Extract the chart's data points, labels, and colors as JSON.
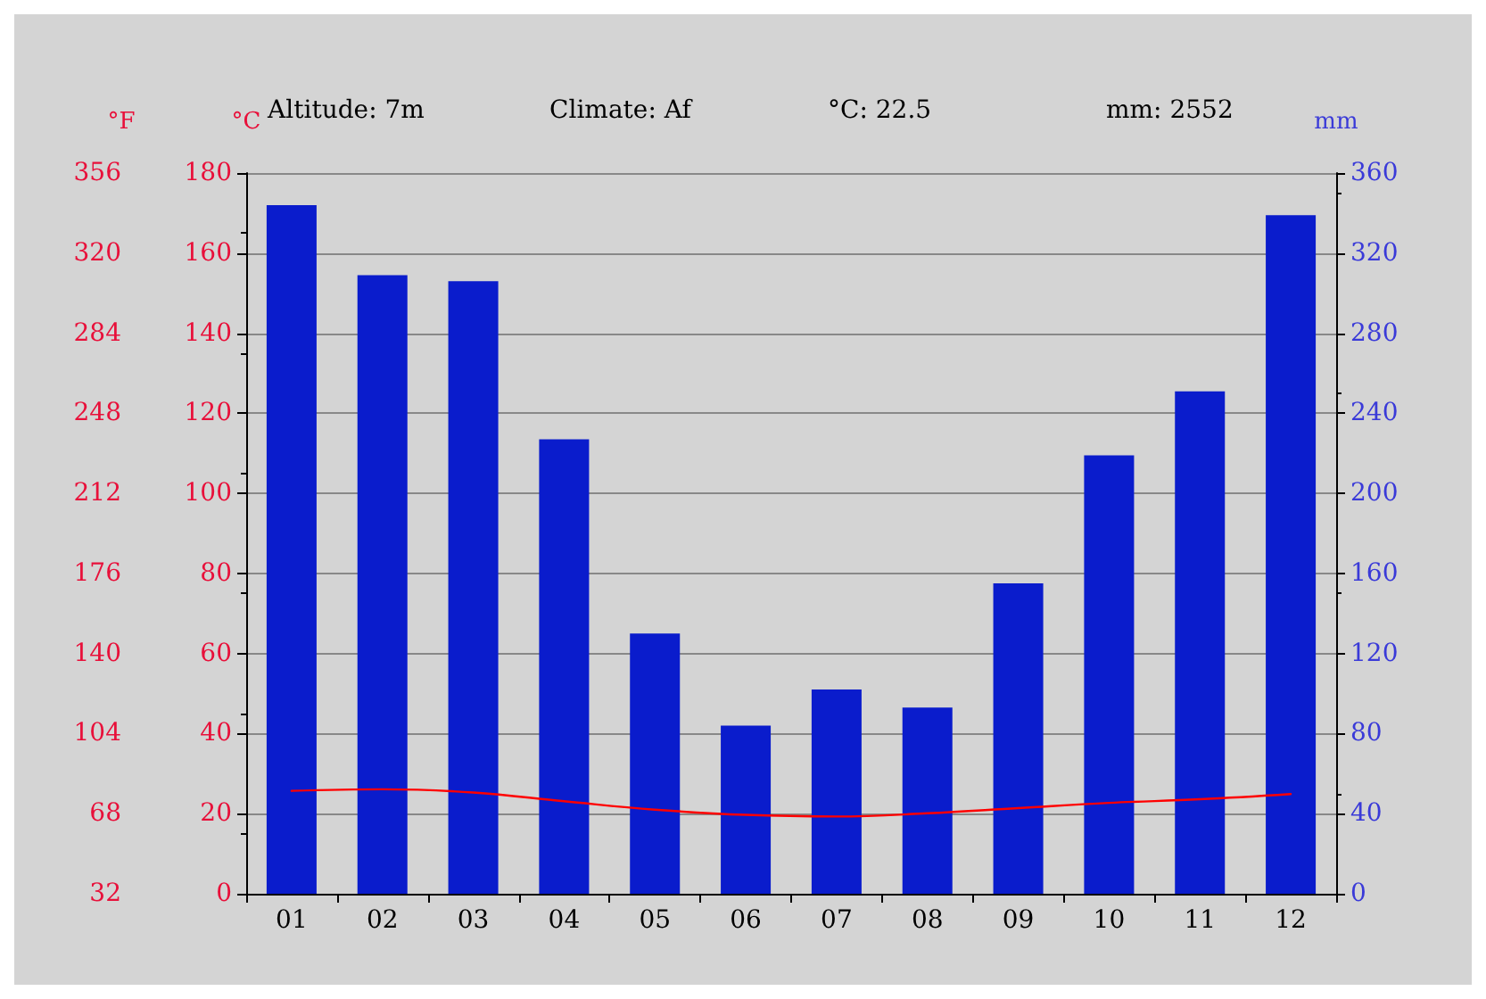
{
  "chart_data": {
    "type": "bar",
    "categories": [
      "01",
      "02",
      "03",
      "04",
      "05",
      "06",
      "07",
      "08",
      "09",
      "10",
      "11",
      "12"
    ],
    "series": [
      {
        "axis": "y2",
        "color": "#0a1ccc",
        "values": [
          344,
          309,
          306,
          227,
          130,
          84,
          102,
          93,
          155,
          219,
          251,
          339
        ]
      },
      {
        "type": "line",
        "axis": "y",
        "color": "#ff0000",
        "values": [
          25.7,
          26.1,
          25.3,
          23.1,
          21,
          19.7,
          19.3,
          20.1,
          21.4,
          22.7,
          23.6,
          24.9
        ]
      }
    ],
    "ylabel": "°C",
    "y2label": "mm",
    "y3label": "°F",
    "ylim": [
      0,
      180
    ],
    "yticks": [
      0,
      20,
      40,
      60,
      80,
      100,
      120,
      140,
      160,
      180
    ],
    "y2lim": [
      0,
      360
    ],
    "y2ticks": [
      0,
      40,
      80,
      120,
      160,
      200,
      240,
      280,
      320,
      360
    ],
    "y3lim": [
      32,
      356
    ],
    "y3ticks": [
      32,
      68,
      104,
      140,
      176,
      212,
      248,
      284,
      320,
      356
    ],
    "annotations": [
      "Altitude: 7m",
      "Climate: Af",
      "°C: 22.5",
      "mm: 2552"
    ],
    "grid": "y",
    "marker": "none",
    "line_style": "solid"
  }
}
